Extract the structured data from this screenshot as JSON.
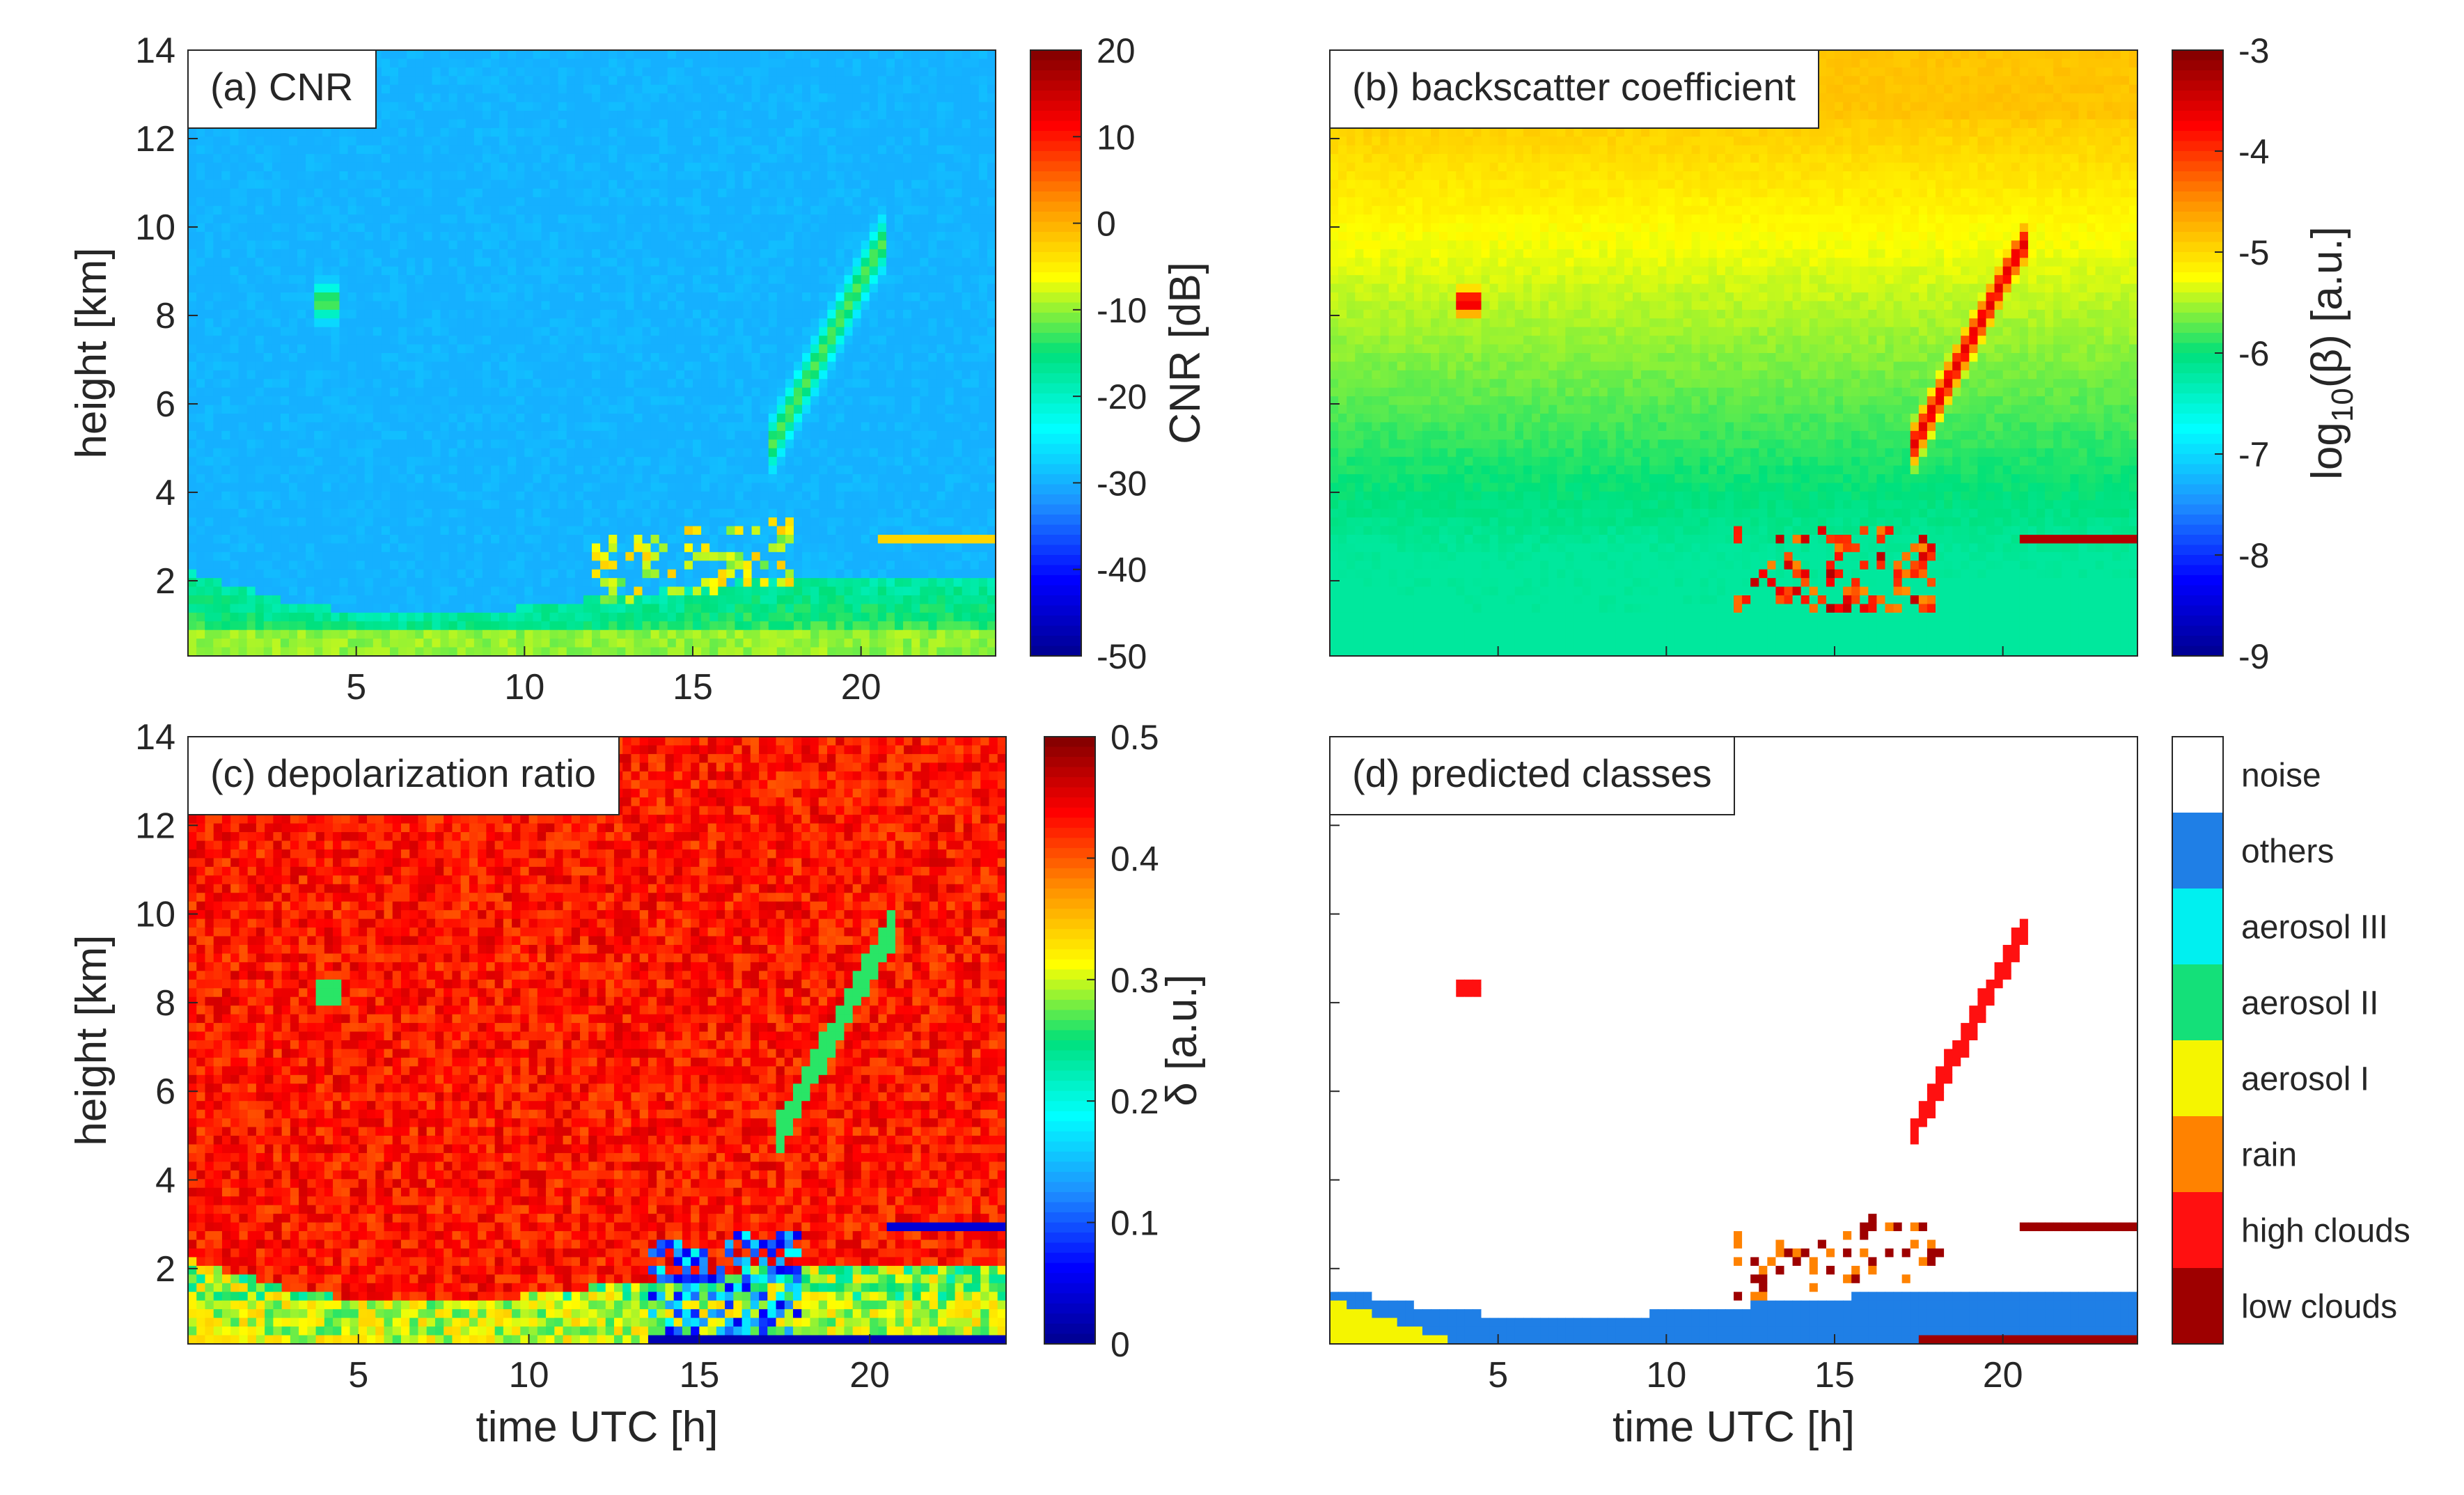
{
  "figure": {
    "time_axis_label": "time UTC [h]",
    "height_axis_label": "height [km]"
  },
  "chart_data": [
    {
      "type": "heatmap",
      "panel_label": "(a) CNR",
      "ylabel": "height [km]",
      "xlabel": "",
      "x_ticks": [
        5,
        10,
        15,
        20
      ],
      "y_ticks": [
        2,
        4,
        6,
        8,
        10,
        12,
        14
      ],
      "xlim": [
        0,
        24
      ],
      "ylim": [
        0.3,
        14
      ],
      "colorbar": {
        "label": "CNR [dB]",
        "ticks": [
          20,
          10,
          0,
          -10,
          -20,
          -30,
          -40,
          -50
        ],
        "min": -50,
        "max": 20
      },
      "field": "cnr"
    },
    {
      "type": "heatmap",
      "panel_label": "(b) backscatter coefficient",
      "ylabel": "",
      "xlabel": "",
      "x_ticks": [],
      "y_ticks": [],
      "xlim": [
        0,
        24
      ],
      "ylim": [
        0.3,
        14
      ],
      "colorbar": {
        "label_prefix": "log",
        "label_sub": "10",
        "label_suffix": "(β) [a.u.]",
        "ticks": [
          -3,
          -4,
          -5,
          -6,
          -7,
          -8,
          -9
        ],
        "min": -9,
        "max": -3
      },
      "field": "beta"
    },
    {
      "type": "heatmap",
      "panel_label": "(c) depolarization ratio",
      "ylabel": "height [km]",
      "xlabel": "time UTC [h]",
      "x_ticks": [
        5,
        10,
        15,
        20
      ],
      "y_ticks": [
        2,
        4,
        6,
        8,
        10,
        12,
        14
      ],
      "xlim": [
        0,
        24
      ],
      "ylim": [
        0.3,
        14
      ],
      "colorbar": {
        "label": "δ [a.u.]",
        "ticks": [
          0.5,
          0.4,
          0.3,
          0.2,
          0.1,
          0
        ],
        "min": 0,
        "max": 0.5
      },
      "field": "depol"
    },
    {
      "type": "heatmap",
      "panel_label": "(d) predicted classes",
      "ylabel": "",
      "xlabel": "time UTC [h]",
      "x_ticks": [
        5,
        10,
        15,
        20
      ],
      "y_ticks": [],
      "xlim": [
        0,
        24
      ],
      "ylim": [
        0.3,
        14
      ],
      "classes": [
        {
          "name": "noise",
          "color": "#ffffff"
        },
        {
          "name": "others",
          "color": "#1f7fe6"
        },
        {
          "name": "aerosol III",
          "color": "#00f0f0"
        },
        {
          "name": "aerosol II",
          "color": "#14e079"
        },
        {
          "name": "aerosol I",
          "color": "#f5f500"
        },
        {
          "name": "rain",
          "color": "#ff8200"
        },
        {
          "name": "high clouds",
          "color": "#ff1010"
        },
        {
          "name": "low clouds",
          "color": "#9e0000"
        }
      ],
      "field": "classes"
    }
  ],
  "colormap": [
    "#00008f",
    "#0000ff",
    "#1e90ff",
    "#00ffff",
    "#00e07a",
    "#ffff00",
    "#ff9000",
    "#ff0000",
    "#800000"
  ]
}
